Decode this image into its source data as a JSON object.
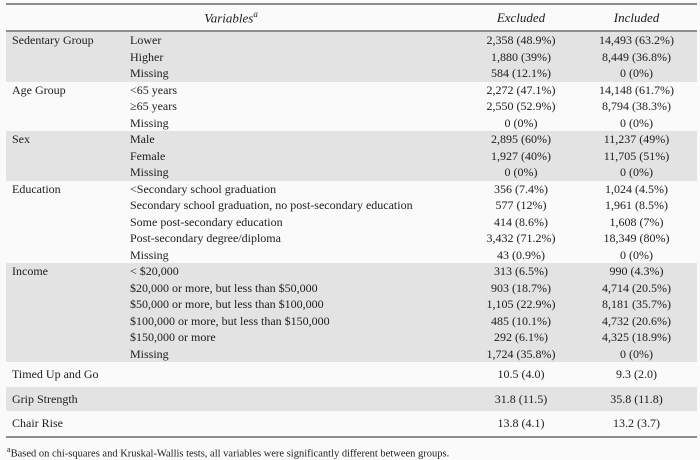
{
  "style": {
    "row_shade": "#e3e3e3",
    "rule_color": "#8c8c8c",
    "text_color": "#1c1c1c",
    "page_bg": "#fafafa"
  },
  "table": {
    "headers": {
      "variables": "Variables",
      "variables_sup": "a",
      "excluded": "Excluded",
      "included": "Included"
    },
    "groups": [
      {
        "name": "Sedentary Group",
        "shaded": true,
        "levels": [
          {
            "label": "Lower",
            "excluded": "2,358 (48.9%)",
            "included": "14,493 (63.2%)"
          },
          {
            "label": "Higher",
            "excluded": "1,880 (39%)",
            "included": "8,449 (36.8%)"
          },
          {
            "label": "Missing",
            "excluded": "584 (12.1%)",
            "included": "0 (0%)"
          }
        ]
      },
      {
        "name": "Age Group",
        "shaded": false,
        "levels": [
          {
            "label": "<65 years",
            "excluded": "2,272 (47.1%)",
            "included": "14,148 (61.7%)"
          },
          {
            "label": "≥65 years",
            "excluded": "2,550 (52.9%)",
            "included": "8,794 (38.3%)"
          },
          {
            "label": "Missing",
            "excluded": "0 (0%)",
            "included": "0 (0%)"
          }
        ]
      },
      {
        "name": "Sex",
        "shaded": true,
        "levels": [
          {
            "label": "Male",
            "excluded": "2,895 (60%)",
            "included": "11,237 (49%)"
          },
          {
            "label": "Female",
            "excluded": "1,927 (40%)",
            "included": "11,705 (51%)"
          },
          {
            "label": "Missing",
            "excluded": "0 (0%)",
            "included": "0 (0%)"
          }
        ]
      },
      {
        "name": "Education",
        "shaded": false,
        "levels": [
          {
            "label": "<Secondary school graduation",
            "excluded": "356 (7.4%)",
            "included": "1,024 (4.5%)"
          },
          {
            "label": "Secondary school graduation, no post-secondary education",
            "excluded": "577 (12%)",
            "included": "1,961 (8.5%)"
          },
          {
            "label": "Some post-secondary education",
            "excluded": "414 (8.6%)",
            "included": "1,608 (7%)"
          },
          {
            "label": "Post-secondary degree/diploma",
            "excluded": "3,432 (71.2%)",
            "included": "18,349 (80%)"
          },
          {
            "label": "Missing",
            "excluded": "43 (0.9%)",
            "included": "0 (0%)"
          }
        ]
      },
      {
        "name": "Income",
        "shaded": true,
        "levels": [
          {
            "label": "< $20,000",
            "excluded": "313 (6.5%)",
            "included": "990 (4.3%)"
          },
          {
            "label": "$20,000 or more, but less than $50,000",
            "excluded": "903 (18.7%)",
            "included": "4,714 (20.5%)"
          },
          {
            "label": "$50,000 or more, but less than $100,000",
            "excluded": "1,105 (22.9%)",
            "included": "8,181 (35.7%)"
          },
          {
            "label": "$100,000 or more, but less than $150,000",
            "excluded": "485 (10.1%)",
            "included": "4,732 (20.6%)"
          },
          {
            "label": "$150,000 or more",
            "excluded": "292 (6.1%)",
            "included": "4,325 (18.9%)"
          },
          {
            "label": "Missing",
            "excluded": "1,724 (35.8%)",
            "included": "0 (0%)"
          }
        ]
      },
      {
        "name": "Timed Up and Go",
        "shaded": false,
        "levels": [
          {
            "label": "",
            "excluded": "10.5 (4.0)",
            "included": "9.3 (2.0)"
          }
        ]
      },
      {
        "name": "Grip Strength",
        "shaded": true,
        "levels": [
          {
            "label": "",
            "excluded": "31.8 (11.5)",
            "included": "35.8 (11.8)"
          }
        ]
      },
      {
        "name": "Chair Rise",
        "shaded": false,
        "levels": [
          {
            "label": "",
            "excluded": "13.8 (4.1)",
            "included": "13.2 (3.7)"
          }
        ]
      }
    ]
  },
  "footnote": {
    "marker": "a",
    "text": "Based on chi-squares and Kruskal-Wallis tests, all variables were significantly different between groups."
  }
}
